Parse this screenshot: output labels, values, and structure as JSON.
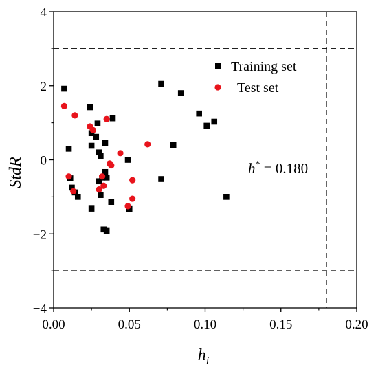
{
  "chart_data": {
    "type": "scatter",
    "title": "",
    "xlabel": "h",
    "xlabel_sub": "i",
    "ylabel": "StdR",
    "xlim": [
      0,
      0.2
    ],
    "ylim": [
      -4,
      4
    ],
    "xticks": [
      0.0,
      0.05,
      0.1,
      0.15,
      0.2
    ],
    "xtick_labels": [
      "0.00",
      "0.05",
      "0.10",
      "0.15",
      "0.20"
    ],
    "yticks": [
      -4,
      -2,
      0,
      2,
      4
    ],
    "ytick_labels": [
      "−4",
      "−2",
      "0",
      "2",
      "4"
    ],
    "grid": false,
    "legend_position": "top-right",
    "reference_lines": {
      "horizontal": [
        3,
        -3
      ],
      "vertical": [
        0.18
      ]
    },
    "annotation": {
      "base": "h",
      "sup": "*",
      "text": " = 0.180"
    },
    "series": [
      {
        "name": "Training set",
        "marker": "square",
        "color": "#000000",
        "points": [
          [
            0.007,
            1.92
          ],
          [
            0.01,
            0.3
          ],
          [
            0.011,
            -0.5
          ],
          [
            0.012,
            -0.75
          ],
          [
            0.014,
            -0.88
          ],
          [
            0.016,
            -1.0
          ],
          [
            0.024,
            1.42
          ],
          [
            0.025,
            0.38
          ],
          [
            0.025,
            0.72
          ],
          [
            0.025,
            -1.32
          ],
          [
            0.028,
            0.62
          ],
          [
            0.03,
            0.2
          ],
          [
            0.029,
            0.98
          ],
          [
            0.03,
            -0.58
          ],
          [
            0.031,
            0.1
          ],
          [
            0.031,
            -0.95
          ],
          [
            0.032,
            -0.48
          ],
          [
            0.033,
            -1.88
          ],
          [
            0.035,
            -1.92
          ],
          [
            0.034,
            0.46
          ],
          [
            0.034,
            -0.33
          ],
          [
            0.035,
            -0.48
          ],
          [
            0.038,
            -1.14
          ],
          [
            0.039,
            1.12
          ],
          [
            0.049,
            0.0
          ],
          [
            0.05,
            -1.33
          ],
          [
            0.071,
            2.05
          ],
          [
            0.071,
            -0.52
          ],
          [
            0.079,
            0.4
          ],
          [
            0.084,
            1.8
          ],
          [
            0.096,
            1.25
          ],
          [
            0.101,
            0.92
          ],
          [
            0.106,
            1.03
          ],
          [
            0.114,
            -1.0
          ]
        ]
      },
      {
        "name": "Test set",
        "marker": "circle",
        "color": "#e8141c",
        "points": [
          [
            0.007,
            1.45
          ],
          [
            0.01,
            -0.45
          ],
          [
            0.013,
            -0.85
          ],
          [
            0.014,
            1.2
          ],
          [
            0.024,
            0.9
          ],
          [
            0.026,
            0.8
          ],
          [
            0.03,
            -0.8
          ],
          [
            0.032,
            -0.45
          ],
          [
            0.033,
            -0.7
          ],
          [
            0.035,
            1.1
          ],
          [
            0.037,
            -0.1
          ],
          [
            0.038,
            -0.15
          ],
          [
            0.044,
            0.18
          ],
          [
            0.049,
            -1.25
          ],
          [
            0.052,
            -1.05
          ],
          [
            0.052,
            -0.55
          ],
          [
            0.062,
            0.42
          ]
        ]
      }
    ]
  }
}
